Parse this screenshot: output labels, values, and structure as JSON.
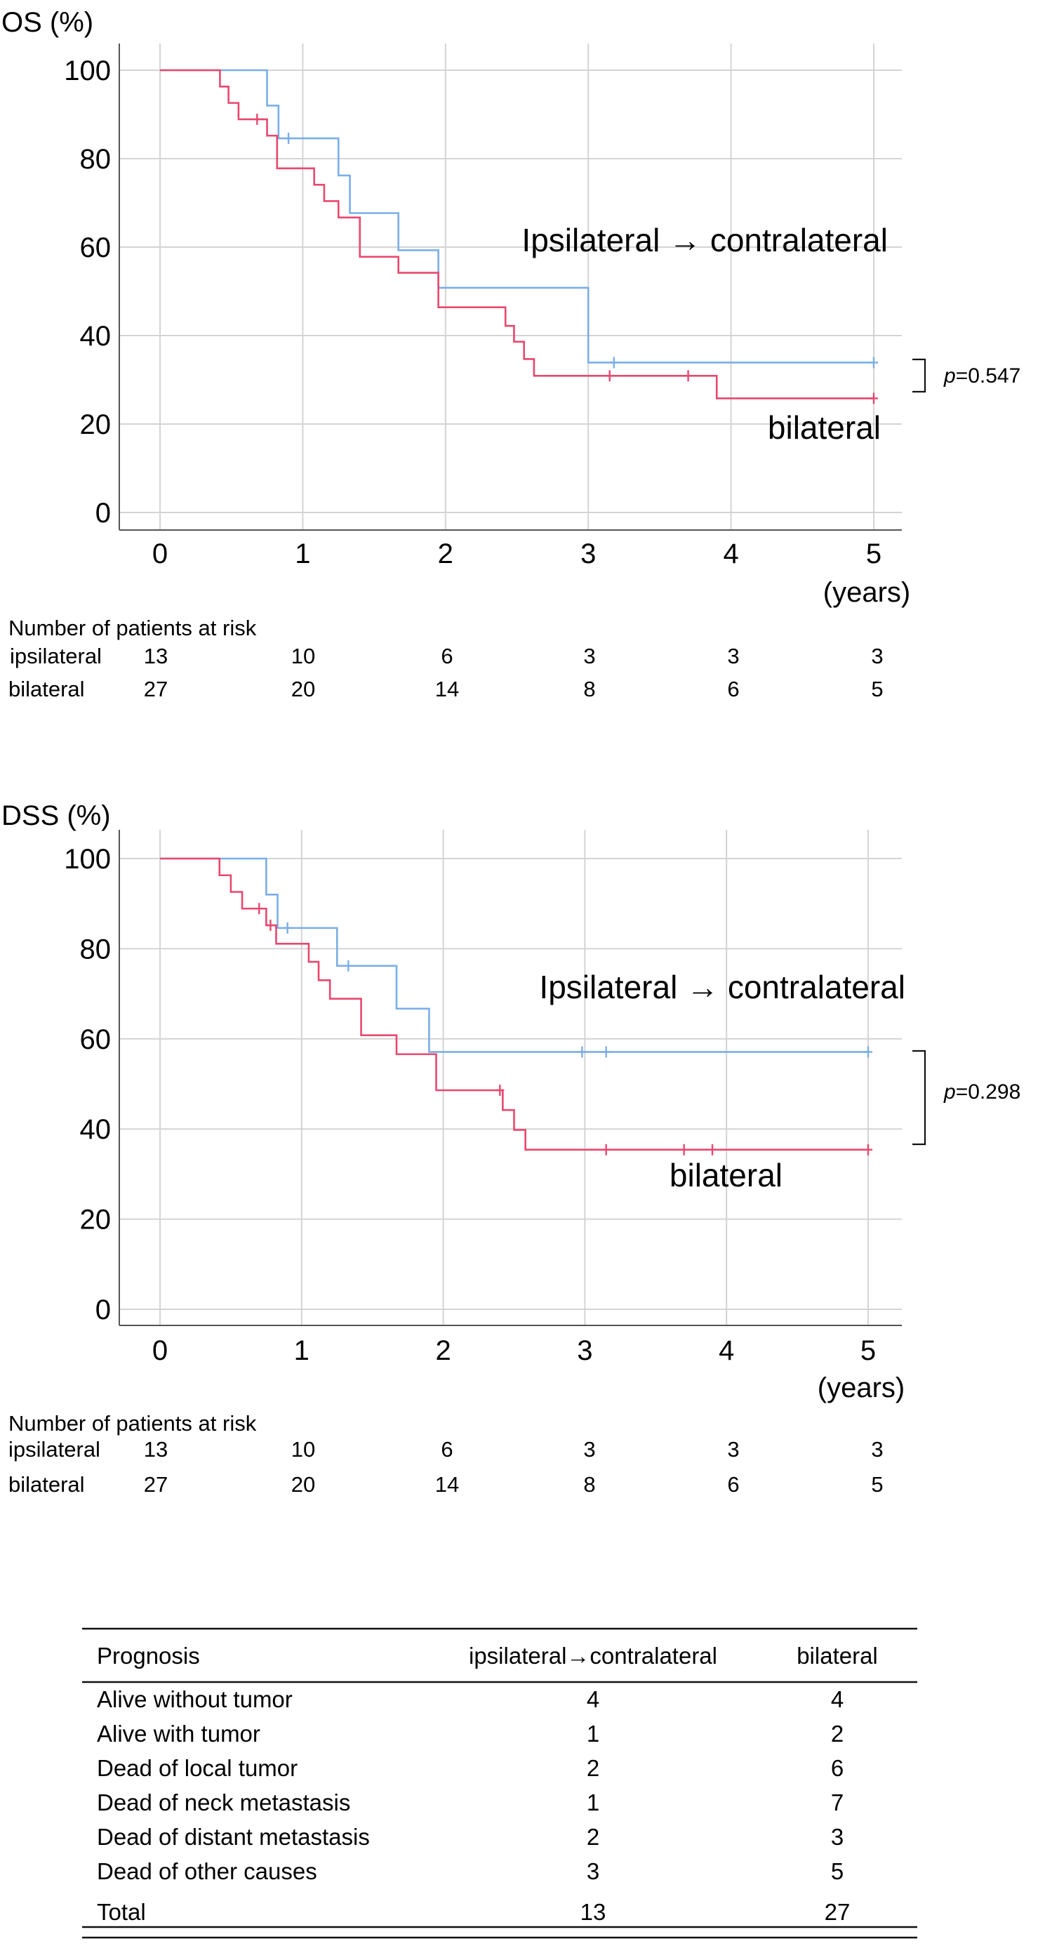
{
  "charts": [
    {
      "type": "line",
      "subtype": "kaplan-meier",
      "title": "OS (%)",
      "xlabel": "(years)",
      "xlim": [
        0,
        5
      ],
      "ylim": [
        0,
        100
      ],
      "xticks": [
        "0",
        "1",
        "2",
        "3",
        "4",
        "5"
      ],
      "yticks": [
        "0",
        "20",
        "40",
        "60",
        "80",
        "100"
      ],
      "series": [
        {
          "name": "Ipsilateral → contralateral",
          "color": "#7aaee8",
          "x": [
            0,
            0.75,
            0.83,
            1.25,
            1.33,
            1.67,
            1.95,
            3.0,
            5.0
          ],
          "y": [
            100,
            92,
            84.6,
            76.2,
            67.7,
            59.3,
            50.8,
            33.9,
            33.9
          ],
          "censored": [
            [
              0.9,
              84.6
            ],
            [
              3.18,
              33.9
            ],
            [
              5.0,
              33.9
            ]
          ]
        },
        {
          "name": "bilateral",
          "color": "#e8486e",
          "x": [
            0,
            0.42,
            0.48,
            0.55,
            0.63,
            0.75,
            0.82,
            0.95,
            1.08,
            1.15,
            1.25,
            1.4,
            1.67,
            1.95,
            2.42,
            2.48,
            2.55,
            2.62,
            3.9,
            5.0
          ],
          "y": [
            100,
            96.3,
            92.6,
            88.9,
            88.9,
            85.2,
            77.8,
            77.8,
            74.1,
            70.4,
            66.7,
            57.8,
            54.2,
            46.4,
            42.2,
            38.6,
            34.7,
            30.9,
            25.8,
            25.8
          ],
          "censored": [
            [
              0.68,
              88.9
            ],
            [
              3.15,
              30.9
            ],
            [
              3.7,
              30.9
            ],
            [
              5.0,
              25.8
            ]
          ]
        }
      ],
      "p_prefix": "p",
      "p_value": "=0.547",
      "curve_labels": [
        "Ipsilateral → contralateral",
        "bilateral"
      ],
      "risk_table": {
        "title": "Number  of  patients at risk",
        "rows": [
          {
            "label": "ipsilateral",
            "values": [
              "13",
              "10",
              "6",
              "3",
              "3",
              "3"
            ]
          },
          {
            "label": "bilateral",
            "values": [
              "27",
              "20",
              "14",
              "8",
              "6",
              "5"
            ]
          }
        ]
      }
    },
    {
      "type": "line",
      "subtype": "kaplan-meier",
      "title": "DSS (%)",
      "xlabel": "(years)",
      "xlim": [
        0,
        5
      ],
      "ylim": [
        0,
        100
      ],
      "xticks": [
        "0",
        "1",
        "2",
        "3",
        "4",
        "5"
      ],
      "yticks": [
        "0",
        "20",
        "40",
        "60",
        "80",
        "100"
      ],
      "series": [
        {
          "name": "Ipsilateral → contralateral",
          "color": "#7aaee8",
          "x": [
            0,
            0.75,
            0.83,
            1.25,
            1.67,
            1.9,
            5.0
          ],
          "y": [
            100,
            92,
            84.6,
            76.2,
            66.7,
            57.1,
            57.1
          ],
          "censored": [
            [
              0.9,
              84.6
            ],
            [
              1.33,
              76.2
            ],
            [
              2.98,
              57.1
            ],
            [
              3.15,
              57.1
            ],
            [
              5.0,
              57.1
            ]
          ]
        },
        {
          "name": "bilateral",
          "color": "#e8486e",
          "x": [
            0,
            0.42,
            0.5,
            0.58,
            0.67,
            0.75,
            0.82,
            1.05,
            1.12,
            1.2,
            1.25,
            1.42,
            1.67,
            1.95,
            2.42,
            2.5,
            2.58,
            2.65,
            5.0
          ],
          "y": [
            100,
            96.3,
            92.6,
            88.9,
            88.9,
            85.2,
            81.1,
            77.1,
            73.0,
            68.9,
            68.9,
            60.8,
            56.6,
            48.6,
            44.2,
            39.8,
            35.4,
            35.4,
            35.4
          ],
          "censored": [
            [
              0.7,
              88.9
            ],
            [
              0.78,
              85.2
            ],
            [
              2.4,
              48.6
            ],
            [
              3.15,
              35.4
            ],
            [
              3.7,
              35.4
            ],
            [
              3.9,
              35.4
            ],
            [
              5.0,
              35.4
            ]
          ]
        }
      ],
      "p_prefix": "p",
      "p_value": "=0.298",
      "curve_labels": [
        "Ipsilateral → contralateral",
        "bilateral"
      ],
      "risk_table": {
        "title": "Number  of  patients at risk",
        "rows": [
          {
            "label": "ipsilateral",
            "values": [
              "13",
              "10",
              "6",
              "3",
              "3",
              "3"
            ]
          },
          {
            "label": "bilateral",
            "values": [
              "27",
              "20",
              "14",
              "8",
              "6",
              "5"
            ]
          }
        ]
      }
    }
  ],
  "prognosis_table": {
    "headers": [
      "Prognosis",
      "ipsilateral→contralateral",
      "bilateral"
    ],
    "rows": [
      [
        "Alive without tumor",
        "4",
        "4"
      ],
      [
        "Alive with tumor",
        "1",
        "2"
      ],
      [
        "Dead of local tumor",
        "2",
        "6"
      ],
      [
        "Dead of neck metastasis",
        "1",
        "7"
      ],
      [
        "Dead of distant metastasis",
        "2",
        "3"
      ],
      [
        "Dead of other causes",
        "3",
        "5"
      ]
    ],
    "total": [
      "Total",
      "13",
      "27"
    ]
  }
}
